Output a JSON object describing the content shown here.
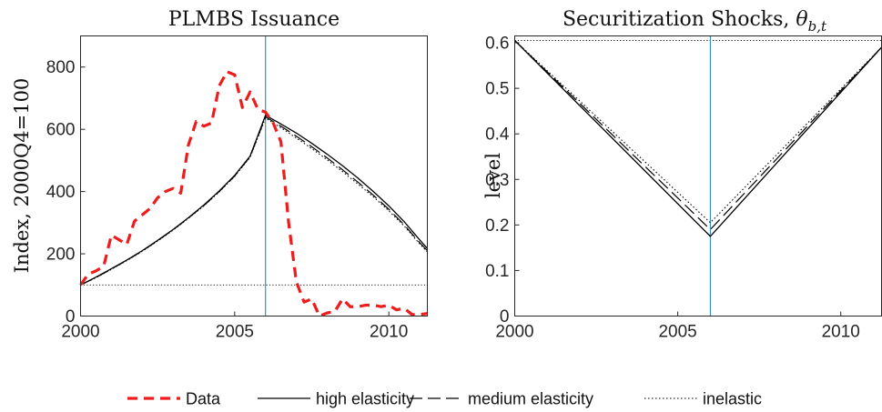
{
  "chart_data": [
    {
      "type": "line",
      "title": "PLMBS Issuance",
      "xlabel": "",
      "ylabel": "Index, 2000Q4=100",
      "xlim": [
        2000,
        2011.25
      ],
      "ylim": [
        0,
        900
      ],
      "xticks": [
        "2000",
        "2005",
        "2010"
      ],
      "yticks": [
        "0",
        "200",
        "400",
        "600",
        "800"
      ],
      "vline_x": 2006,
      "hline_y": 100,
      "grid": false,
      "series": [
        {
          "name": "Data",
          "color": "#ee1c1c",
          "style": "dashed",
          "x": [
            2000.0,
            2000.25,
            2000.5,
            2000.75,
            2001.0,
            2001.25,
            2001.5,
            2001.75,
            2002.0,
            2002.25,
            2002.5,
            2002.75,
            2003.0,
            2003.25,
            2003.5,
            2003.75,
            2004.0,
            2004.25,
            2004.5,
            2004.75,
            2005.0,
            2005.25,
            2005.5,
            2005.75,
            2006.0,
            2006.25,
            2006.5,
            2006.75,
            2007.0,
            2007.25,
            2007.5,
            2007.75,
            2008.0,
            2008.25,
            2008.5,
            2008.75,
            2009.0,
            2009.25,
            2009.5,
            2009.75,
            2010.0,
            2010.25,
            2010.5,
            2010.75,
            2011.0,
            2011.25
          ],
          "y": [
            100,
            135,
            145,
            160,
            260,
            245,
            230,
            305,
            325,
            345,
            380,
            400,
            410,
            395,
            550,
            625,
            610,
            620,
            740,
            785,
            775,
            670,
            720,
            665,
            655,
            620,
            560,
            300,
            110,
            45,
            55,
            0,
            10,
            15,
            55,
            30,
            30,
            35,
            35,
            30,
            35,
            20,
            25,
            5,
            5,
            8
          ]
        },
        {
          "name": "high elasticity",
          "color": "#000000",
          "style": "solid",
          "x": [
            2000,
            2000.5,
            2001,
            2001.5,
            2002,
            2002.5,
            2003,
            2003.5,
            2004,
            2004.5,
            2005,
            2005.5,
            2006,
            2006.5,
            2007,
            2007.5,
            2008,
            2008.5,
            2009,
            2009.5,
            2010,
            2010.5,
            2011,
            2011.25
          ],
          "y": [
            100,
            125,
            152,
            180,
            210,
            243,
            278,
            316,
            357,
            402,
            452,
            514,
            645,
            617,
            588,
            555,
            520,
            483,
            443,
            400,
            354,
            303,
            245,
            217
          ]
        },
        {
          "name": "medium elasticity",
          "color": "#000000",
          "style": "longdash",
          "x": [
            2000,
            2000.5,
            2001,
            2001.5,
            2002,
            2002.5,
            2003,
            2003.5,
            2004,
            2004.5,
            2005,
            2005.5,
            2006,
            2006.5,
            2007,
            2007.5,
            2008,
            2008.5,
            2009,
            2009.5,
            2010,
            2010.5,
            2011,
            2011.25
          ],
          "y": [
            100,
            124,
            151,
            179,
            209,
            242,
            277,
            315,
            355,
            400,
            450,
            512,
            640,
            610,
            578,
            544,
            508,
            470,
            430,
            388,
            343,
            293,
            236,
            210
          ]
        },
        {
          "name": "inelastic",
          "color": "#000000",
          "style": "dotted",
          "x": [
            2000,
            2000.5,
            2001,
            2001.5,
            2002,
            2002.5,
            2003,
            2003.5,
            2004,
            2004.5,
            2005,
            2005.5,
            2006,
            2006.5,
            2007,
            2007.5,
            2008,
            2008.5,
            2009,
            2009.5,
            2010,
            2010.5,
            2011,
            2011.25
          ],
          "y": [
            100,
            123,
            150,
            178,
            208,
            241,
            276,
            314,
            354,
            399,
            449,
            510,
            636,
            605,
            572,
            538,
            502,
            464,
            424,
            383,
            338,
            289,
            232,
            206
          ]
        }
      ]
    },
    {
      "type": "line",
      "title": "Securitization Shocks, ",
      "title_math": "θ",
      "title_sub": "b,t",
      "xlabel": "",
      "ylabel": "level",
      "xlim": [
        2000,
        2011.25
      ],
      "ylim": [
        0,
        0.615
      ],
      "xticks": [
        "2000",
        "2005",
        "2010"
      ],
      "yticks": [
        "0",
        "0.1",
        "0.2",
        "0.3",
        "0.4",
        "0.5",
        "0.6"
      ],
      "vline_x": 2006,
      "hline_y": 0.605,
      "grid": false,
      "series": [
        {
          "name": "high elasticity",
          "color": "#000000",
          "style": "solid",
          "x": [
            2000,
            2006,
            2011.25
          ],
          "y": [
            0.605,
            0.175,
            0.59
          ]
        },
        {
          "name": "medium elasticity",
          "color": "#000000",
          "style": "longdash",
          "x": [
            2000,
            2006,
            2011.25
          ],
          "y": [
            0.605,
            0.19,
            0.59
          ]
        },
        {
          "name": "inelastic",
          "color": "#000000",
          "style": "dotted",
          "x": [
            2000,
            2006,
            2011.25
          ],
          "y": [
            0.605,
            0.205,
            0.59
          ]
        }
      ]
    }
  ],
  "legend": {
    "position": "bottom",
    "items": [
      {
        "label": "Data",
        "color": "#ee1c1c",
        "style": "dashed"
      },
      {
        "label": "high elasticity",
        "color": "#000000",
        "style": "solid"
      },
      {
        "label": "medium elasticity",
        "color": "#000000",
        "style": "longdash"
      },
      {
        "label": "inelastic",
        "color": "#000000",
        "style": "dotted"
      }
    ]
  },
  "colors": {
    "vline": "#3d8fc9",
    "axis": "#262626"
  }
}
